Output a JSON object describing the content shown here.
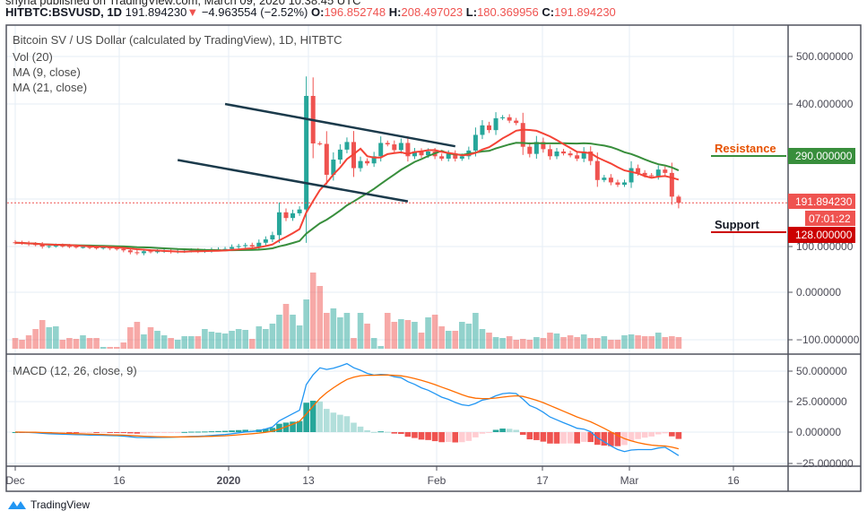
{
  "header": {
    "published": "shyna published on TradingView.com, March 09, 2020 10:38:45 UTC",
    "symbol": "HITBTC:BSVUSD, 1D",
    "last": "191.894230",
    "change": "−4.963554 (−2.52%)",
    "o_label": "O:",
    "o": "196.852748",
    "h_label": "H:",
    "h": "208.497023",
    "l_label": "L:",
    "l": "180.369956",
    "c_label": "C:",
    "c": "191.894230"
  },
  "legend": {
    "title": "Bitcoin SV / US Dollar (calculated by TradingView), 1D, HITBTC",
    "vol": "Vol (20)",
    "ma9": "MA (9, close)",
    "ma21": "MA (21, close)",
    "macd": "MACD (12, 26, close, 9)"
  },
  "annotations": {
    "resistance": "Resistance",
    "support": "Support",
    "resistance_value": "290.000000",
    "support_value": "128.000000",
    "last_price": "191.894230",
    "countdown": "07:01:22"
  },
  "price_axis": [
    "500.000000",
    "400.000000",
    "100.000000",
    "0.000000",
    "−100.000000"
  ],
  "macd_axis": [
    "50.000000",
    "25.000000",
    "0.000000",
    "−25.000000"
  ],
  "time_axis": [
    "Dec",
    "16",
    "2020",
    "13",
    "Feb",
    "17",
    "Mar",
    "16"
  ],
  "branding": "TradingView",
  "colors": {
    "up": "#26a69a",
    "down": "#ef5350",
    "ma9": "#f44336",
    "ma21": "#388e3c",
    "macd": "#2196f3",
    "signal": "#ff6d00",
    "channel": "#1b3a4b",
    "resistance": "#388e3c",
    "support": "#cc0000"
  },
  "chart_data": {
    "type": "candlestick",
    "title": "Bitcoin SV / US Dollar, 1D, HITBTC",
    "start_date": "2019-12-01",
    "end_date": "2020-03-09",
    "ylim": [
      -130,
      560
    ],
    "close": [
      108,
      107,
      105,
      104,
      100,
      101,
      102,
      101,
      100,
      99,
      99,
      98,
      97,
      98,
      96,
      95,
      92,
      88,
      86,
      90,
      89,
      90,
      91,
      89,
      90,
      91,
      92,
      90,
      91,
      93,
      94,
      95,
      99,
      101,
      103,
      100,
      108,
      115,
      124,
      172,
      160,
      170,
      178,
      417,
      317,
      316,
      251,
      283,
      304,
      320,
      265,
      280,
      275,
      290,
      318,
      315,
      303,
      318,
      290,
      300,
      292,
      300,
      290,
      285,
      295,
      285,
      290,
      302,
      335,
      355,
      345,
      370,
      372,
      365,
      360,
      310,
      295,
      320,
      305,
      290,
      300,
      296,
      292,
      285,
      300,
      280,
      240,
      245,
      235,
      230,
      235,
      265,
      255,
      250,
      248,
      262,
      255,
      205,
      192
    ],
    "volume": [
      12,
      10,
      15,
      22,
      32,
      24,
      25,
      10,
      12,
      11,
      15,
      12,
      12,
      2,
      2,
      2,
      7,
      24,
      30,
      16,
      24,
      20,
      15,
      12,
      10,
      14,
      14,
      14,
      22,
      19,
      18,
      17,
      20,
      22,
      21,
      11,
      25,
      22,
      28,
      38,
      50,
      38,
      26,
      55,
      85,
      70,
      40,
      45,
      35,
      40,
      12,
      40,
      28,
      12,
      3,
      40,
      30,
      33,
      32,
      30,
      18,
      35,
      38,
      25,
      20,
      20,
      30,
      28,
      40,
      22,
      18,
      13,
      12,
      14,
      10,
      11,
      10,
      13,
      12,
      18,
      17,
      13,
      15,
      13,
      16,
      12,
      12,
      14,
      10,
      10,
      15,
      16,
      15,
      14,
      14,
      18,
      13,
      14,
      13
    ],
    "resistance": 290,
    "support": 128,
    "last": 191.89423,
    "channel_upper": [
      [
        72,
        400
      ],
      [
        106,
        311
      ]
    ],
    "channel_lower": [
      [
        65,
        282
      ],
      [
        99,
        195
      ]
    ]
  }
}
